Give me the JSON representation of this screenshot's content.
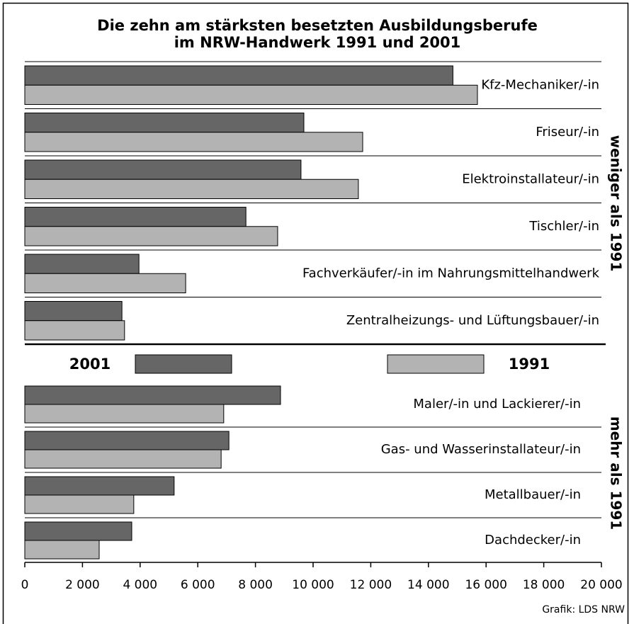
{
  "chart_data": {
    "type": "bar",
    "orientation": "horizontal",
    "title_lines": [
      "Die zehn am stärksten besetzten Ausbildungsberufe",
      "im NRW-Handwerk 1991 und 2001"
    ],
    "categories": [
      "Kfz-Mechaniker/-in",
      "Friseur/-in",
      "Elektroinstallateur/-in",
      "Tischler/-in",
      "Fachverkäufer/-in im Nahrungsmittelhandwerk",
      "Zentralheizungs- und Lüftungsbauer/-in",
      "Maler/-in und Lackierer/-in",
      "Gas- und Wasserinstallateur/-in",
      "Metallbauer/-in",
      "Dachdecker/-in"
    ],
    "series": [
      {
        "name": "2001",
        "color": "#666666",
        "values": [
          14850,
          9680,
          9580,
          7670,
          3960,
          3370,
          8870,
          7080,
          5180,
          3710
        ]
      },
      {
        "name": "1991",
        "color": "#b3b3b3",
        "values": [
          15700,
          11720,
          11570,
          8770,
          5580,
          3460,
          6900,
          6810,
          3780,
          2580
        ]
      }
    ],
    "xlim": [
      0,
      20000
    ],
    "xticks": [
      0,
      {
        "value": 2000,
        "label": "2 000"
      },
      {
        "value": 4000,
        "label": "4 000"
      },
      {
        "value": 6000,
        "label": "6 000"
      },
      {
        "value": 8000,
        "label": "8 000"
      },
      {
        "value": 10000,
        "label": "10 000"
      },
      {
        "value": 12000,
        "label": "12 000"
      },
      {
        "value": 14000,
        "label": "14 000"
      },
      {
        "value": 16000,
        "label": "16 000"
      },
      {
        "value": 18000,
        "label": "18 000"
      },
      {
        "value": 20000,
        "label": "20 000"
      }
    ],
    "annotations": [
      "weniger als 1991",
      "mehr als 1991"
    ],
    "credit": "Grafik: LDS NRW"
  }
}
